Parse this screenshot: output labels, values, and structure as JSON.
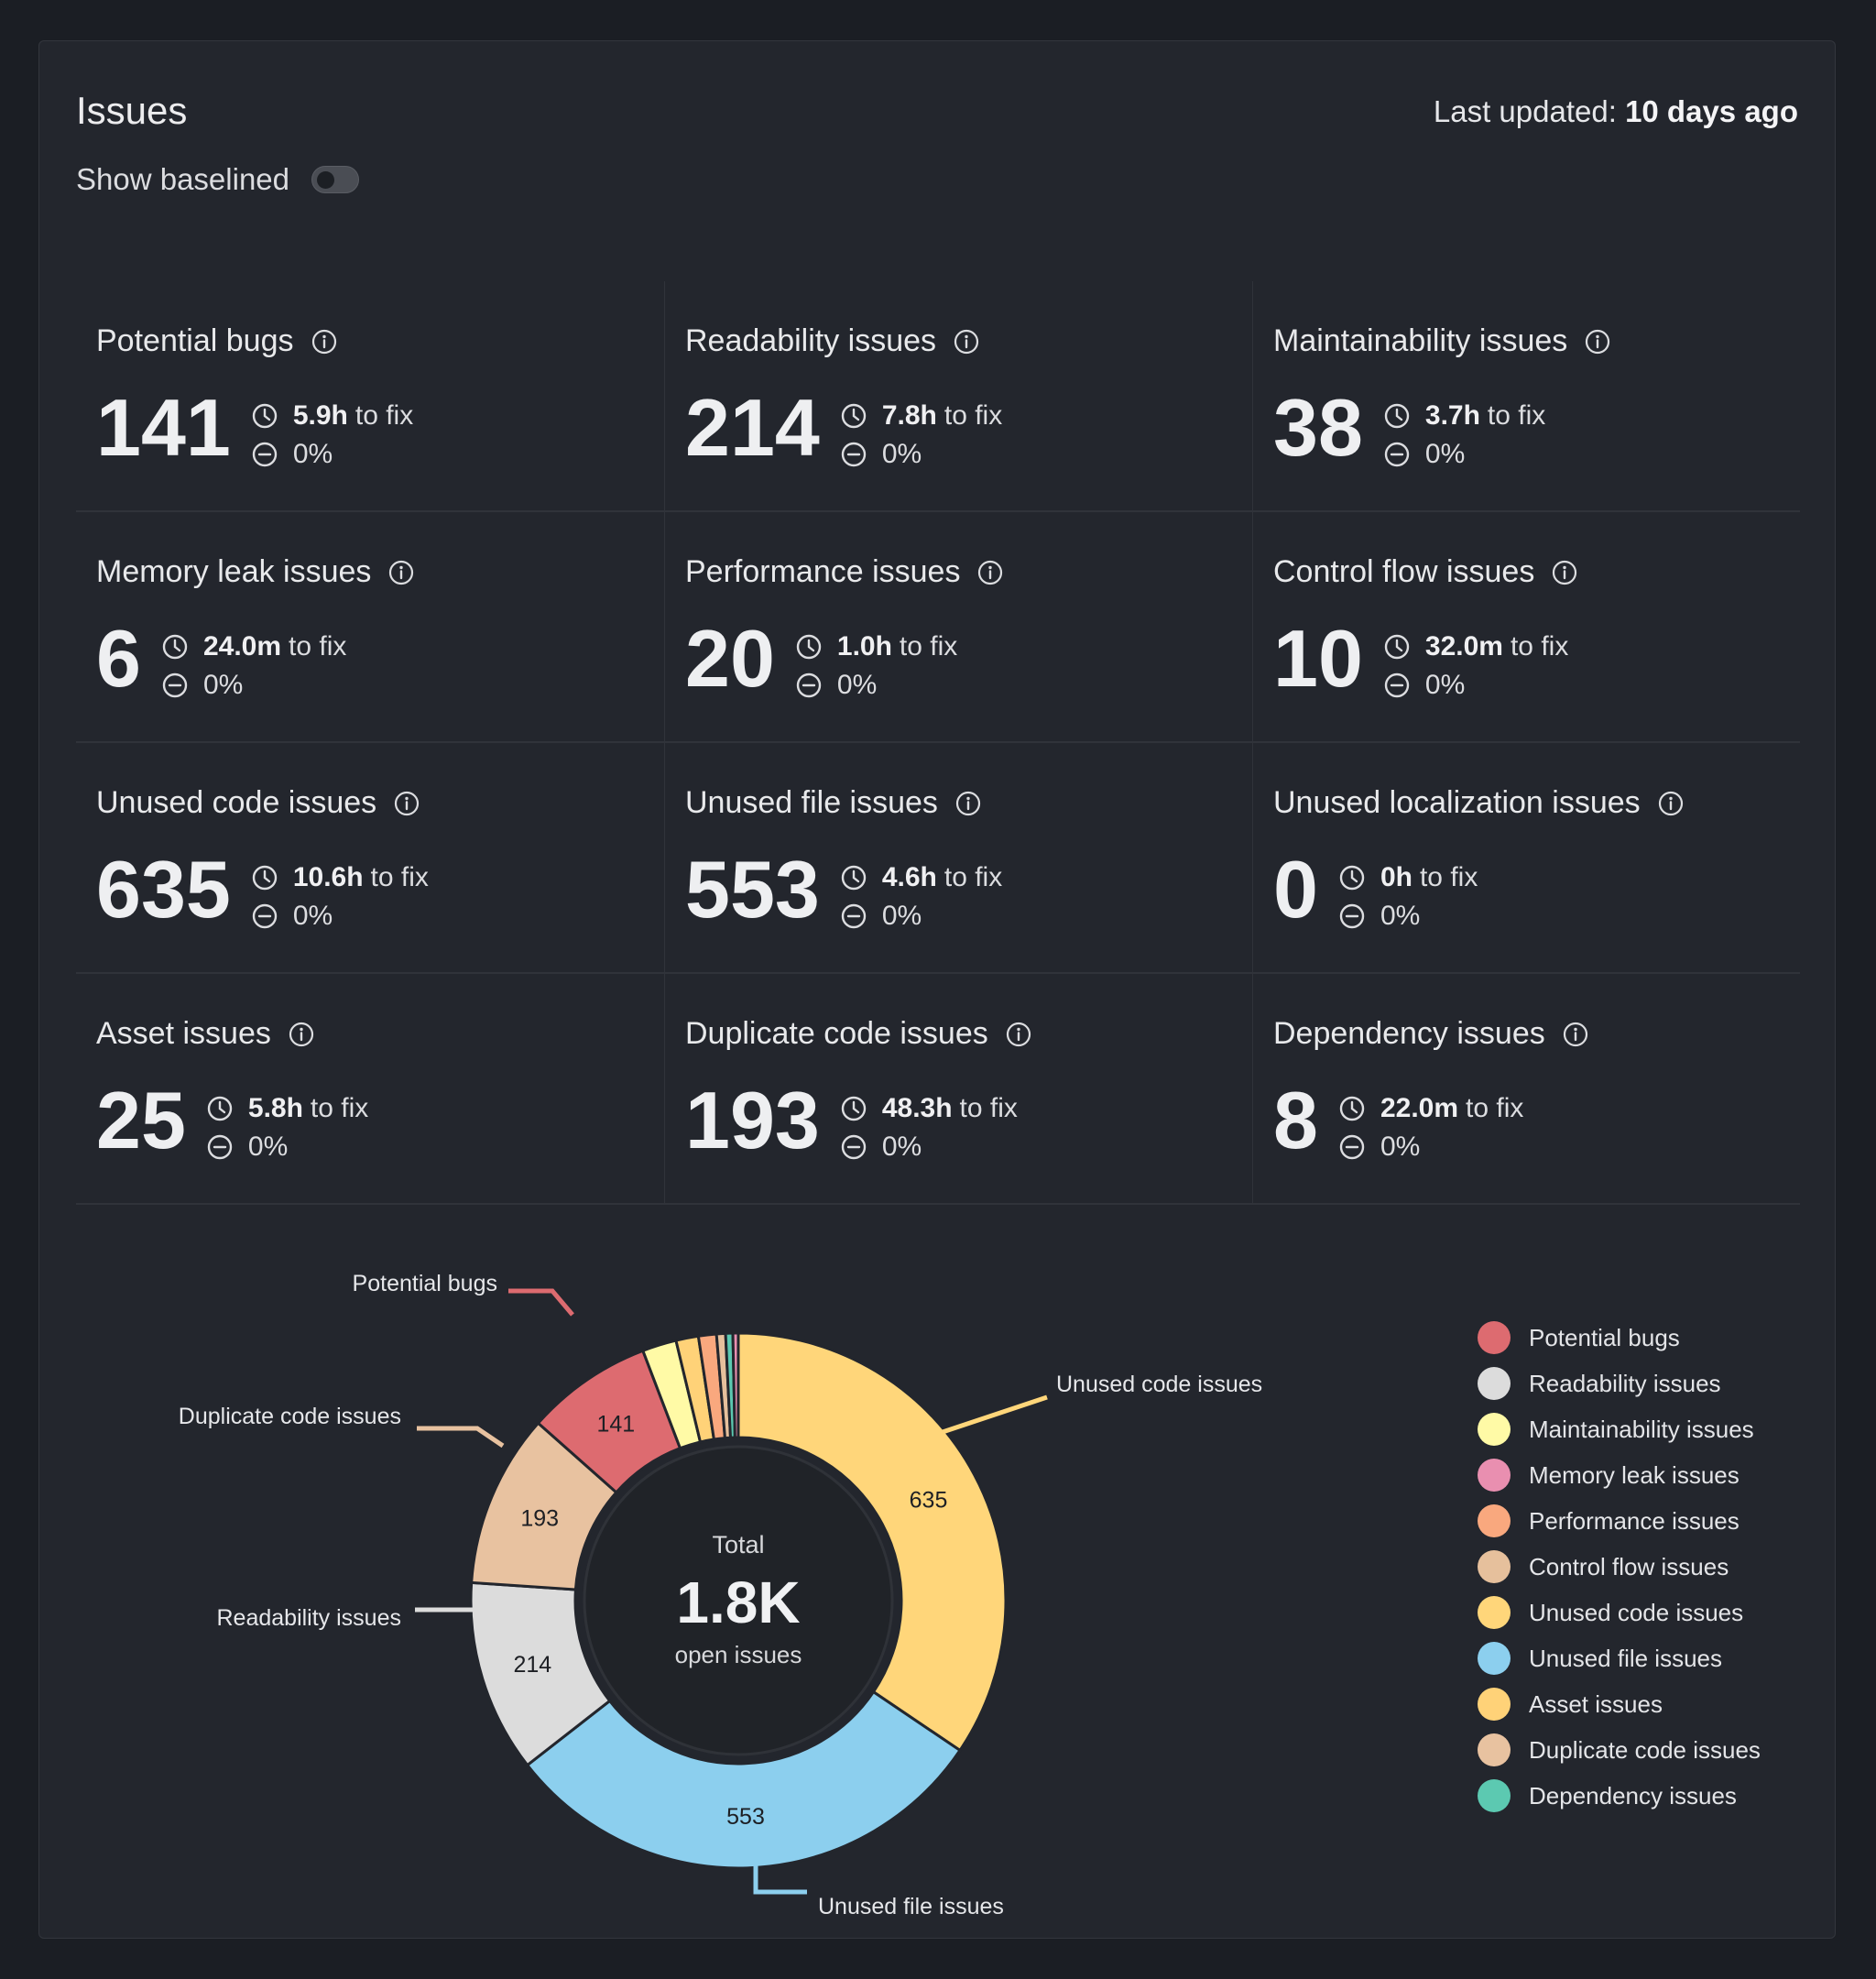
{
  "header": {
    "title": "Issues",
    "last_updated_label": "Last updated:",
    "last_updated_value": "10 days ago",
    "show_baselined_label": "Show baselined",
    "show_baselined_on": false
  },
  "cards": [
    {
      "title": "Potential bugs",
      "count": "141",
      "fix_time": "5.9h",
      "fix_suffix": "to fix",
      "change": "0%"
    },
    {
      "title": "Readability issues",
      "count": "214",
      "fix_time": "7.8h",
      "fix_suffix": "to fix",
      "change": "0%"
    },
    {
      "title": "Maintainability issues",
      "count": "38",
      "fix_time": "3.7h",
      "fix_suffix": "to fix",
      "change": "0%"
    },
    {
      "title": "Memory leak issues",
      "count": "6",
      "fix_time": "24.0m",
      "fix_suffix": "to fix",
      "change": "0%"
    },
    {
      "title": "Performance issues",
      "count": "20",
      "fix_time": "1.0h",
      "fix_suffix": "to fix",
      "change": "0%"
    },
    {
      "title": "Control flow issues",
      "count": "10",
      "fix_time": "32.0m",
      "fix_suffix": "to fix",
      "change": "0%"
    },
    {
      "title": "Unused code issues",
      "count": "635",
      "fix_time": "10.6h",
      "fix_suffix": "to fix",
      "change": "0%"
    },
    {
      "title": "Unused file issues",
      "count": "553",
      "fix_time": "4.6h",
      "fix_suffix": "to fix",
      "change": "0%"
    },
    {
      "title": "Unused localization issues",
      "count": "0",
      "fix_time": "0h",
      "fix_suffix": "to fix",
      "change": "0%"
    },
    {
      "title": "Asset issues",
      "count": "25",
      "fix_time": "5.8h",
      "fix_suffix": "to fix",
      "change": "0%"
    },
    {
      "title": "Duplicate code issues",
      "count": "193",
      "fix_time": "48.3h",
      "fix_suffix": "to fix",
      "change": "0%"
    },
    {
      "title": "Dependency issues",
      "count": "8",
      "fix_time": "22.0m",
      "fix_suffix": "to fix",
      "change": "0%"
    }
  ],
  "chart_data": {
    "type": "pie",
    "center_top": "Total",
    "center_value": "1.8K",
    "center_bottom": "open issues",
    "slices": [
      {
        "name": "Unused code issues",
        "value": 635,
        "color": "#ffd67a",
        "label": "635",
        "callout": "Unused code issues"
      },
      {
        "name": "Unused file issues",
        "value": 553,
        "color": "#8ccfee",
        "label": "553",
        "callout": "Unused file issues"
      },
      {
        "name": "Readability issues",
        "value": 214,
        "color": "#dcdcdc",
        "label": "214",
        "callout": "Readability issues"
      },
      {
        "name": "Duplicate code issues",
        "value": 193,
        "color": "#e8c2a0",
        "label": "193",
        "callout": "Duplicate code issues"
      },
      {
        "name": "Potential bugs",
        "value": 141,
        "color": "#dd6b70",
        "label": "141",
        "callout": "Potential bugs"
      },
      {
        "name": "Maintainability issues",
        "value": 38,
        "color": "#fffaa6",
        "label": "",
        "callout": ""
      },
      {
        "name": "Asset issues",
        "value": 25,
        "color": "#ffd278",
        "label": "",
        "callout": ""
      },
      {
        "name": "Performance issues",
        "value": 20,
        "color": "#f9a87e",
        "label": "",
        "callout": ""
      },
      {
        "name": "Control flow issues",
        "value": 10,
        "color": "#e6c09c",
        "label": "",
        "callout": ""
      },
      {
        "name": "Dependency issues",
        "value": 8,
        "color": "#5cc9b1",
        "label": "",
        "callout": ""
      },
      {
        "name": "Memory leak issues",
        "value": 6,
        "color": "#e98fb0",
        "label": "",
        "callout": ""
      },
      {
        "name": "Unused localization issues",
        "value": 0,
        "color": "#7a8fd6",
        "label": "",
        "callout": ""
      }
    ],
    "legend": [
      {
        "name": "Potential bugs",
        "color": "#dd6b70"
      },
      {
        "name": "Readability issues",
        "color": "#dcdcdc"
      },
      {
        "name": "Maintainability issues",
        "color": "#fffaa6"
      },
      {
        "name": "Memory leak issues",
        "color": "#e98fb0"
      },
      {
        "name": "Performance issues",
        "color": "#f9a87e"
      },
      {
        "name": "Control flow issues",
        "color": "#e6c09c"
      },
      {
        "name": "Unused code issues",
        "color": "#ffd67a"
      },
      {
        "name": "Unused file issues",
        "color": "#8ccfee"
      },
      {
        "name": "Asset issues",
        "color": "#ffd278"
      },
      {
        "name": "Duplicate code issues",
        "color": "#e8c2a0"
      },
      {
        "name": "Dependency issues",
        "color": "#5cc9b1"
      }
    ]
  }
}
